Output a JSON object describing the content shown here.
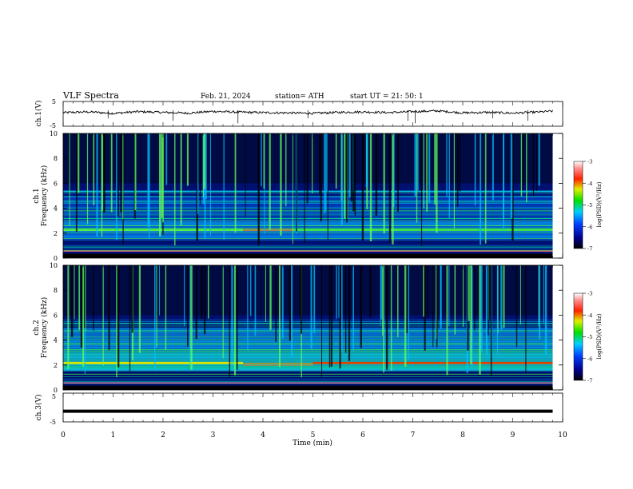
{
  "header": {
    "title": "VLF  Spectra",
    "date": "Feb. 21, 2024",
    "station": "station= ATH",
    "start": "start  UT  =    21: 50: 1"
  },
  "chart_data": [
    {
      "type": "line",
      "panel": "ch1-waveform",
      "ylabel": "ch.1(V)",
      "ylim": [
        -5,
        5
      ],
      "yticks": [
        "5",
        "-5"
      ],
      "x": [
        0,
        0.5,
        1,
        1.5,
        2,
        2.5,
        3,
        3.5,
        4,
        4.5,
        5,
        5.5,
        6,
        6.5,
        7,
        7.5,
        8,
        8.5,
        9,
        9.5,
        9.8
      ],
      "values": [
        0.5,
        0.8,
        0.2,
        0.9,
        0.6,
        0.3,
        1.0,
        0.7,
        0.5,
        0.4,
        0.2,
        0.6,
        0.8,
        0.5,
        0.9,
        1.2,
        0.4,
        0.6,
        0.3,
        0.7,
        1.1
      ]
    },
    {
      "type": "heatmap",
      "panel": "ch1-spectrogram",
      "ylabel": "ch.1\nFrequency (kHz)",
      "ylim": [
        0,
        10
      ],
      "yticks": [
        "0",
        "2",
        "4",
        "6",
        "8",
        "10"
      ],
      "colorbar": {
        "label": "log(PSD)(V²/Hz)",
        "range": [
          -7,
          -3
        ],
        "ticks": [
          "-3",
          "-4",
          "-5",
          "-6",
          "-7"
        ]
      }
    },
    {
      "type": "heatmap",
      "panel": "ch2-spectrogram",
      "ylabel": "ch.2\nFrequency (kHz)",
      "ylim": [
        0,
        10
      ],
      "yticks": [
        "0",
        "2",
        "4",
        "6",
        "8",
        "10"
      ],
      "colorbar": {
        "label": "log(PSD)(V²/Hz)",
        "range": [
          -7,
          -3
        ],
        "ticks": [
          "-3",
          "-4",
          "-5",
          "-6",
          "-7"
        ]
      }
    },
    {
      "type": "line",
      "panel": "ch3-waveform",
      "ylabel": "ch.3(V)",
      "ylim": [
        -5,
        5
      ],
      "yticks": [
        "5",
        "-5"
      ],
      "x": [
        0,
        9.8
      ],
      "values": [
        -1.3,
        -1.3
      ]
    }
  ],
  "xaxis": {
    "label": "Time  (min)",
    "ticks": [
      "0",
      "1",
      "2",
      "3",
      "4",
      "5",
      "6",
      "7",
      "8",
      "9",
      "10"
    ],
    "range": [
      0,
      10
    ]
  }
}
